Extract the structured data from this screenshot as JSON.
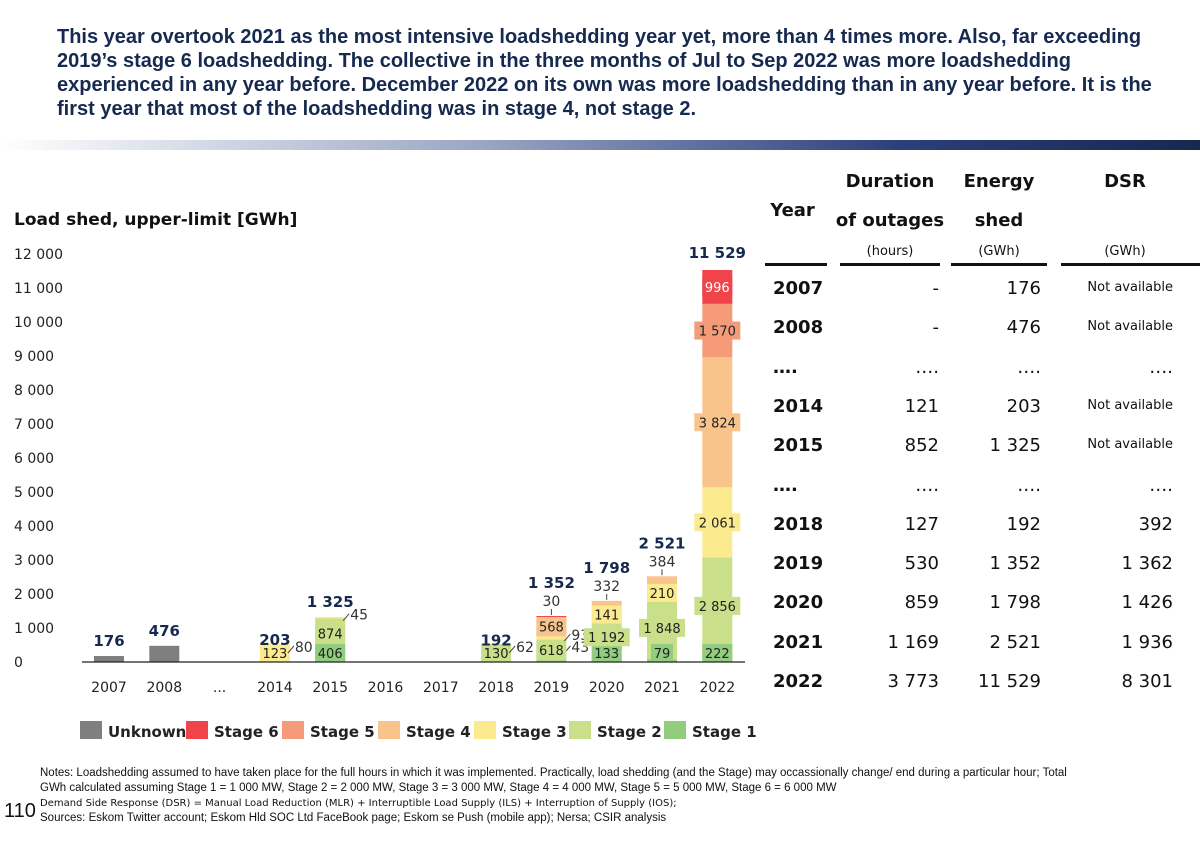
{
  "headline": "This year overtook 2021 as the most intensive loadshedding year yet, more than 4 times more.  Also, far exceeding 2019’s stage 6 loadshedding. The collective in the three months of Jul to Sep 2022 was more loadshedding experienced in any year before. December 2022 on its own was more loadshedding than in any year before. It is the first year that most of the loadshedding was in stage 4, not stage 2.",
  "chart_data": {
    "type": "bar",
    "stacked": true,
    "ylabel": "Load shed, upper-limit [GWh]",
    "ylim": [
      0,
      12000
    ],
    "yticks": [
      "0",
      "1 000",
      "2 000",
      "3 000",
      "4 000",
      "5 000",
      "6 000",
      "7 000",
      "8 000",
      "9 000",
      "10 000",
      "11 000",
      "12 000"
    ],
    "categories": [
      "2007",
      "2008",
      "...",
      "2014",
      "2015",
      "2016",
      "2017",
      "2018",
      "2019",
      "2020",
      "2021",
      "2022"
    ],
    "series": [
      {
        "name": "Unknown",
        "color": "#7f7f7f",
        "values": [
          176,
          476,
          0,
          0,
          0,
          0,
          0,
          0,
          0,
          0,
          0,
          0
        ]
      },
      {
        "name": "Stage 1",
        "color": "#92cc7e",
        "values": [
          0,
          0,
          0,
          0,
          406,
          0,
          0,
          0,
          43,
          133,
          79,
          222
        ]
      },
      {
        "name": "Stage 2",
        "color": "#c9df8a",
        "values": [
          0,
          0,
          0,
          80,
          874,
          0,
          0,
          130,
          618,
          1192,
          1848,
          2856
        ]
      },
      {
        "name": "Stage 3",
        "color": "#fbeb8e",
        "values": [
          0,
          0,
          0,
          123,
          45,
          0,
          0,
          62,
          93,
          141,
          210,
          2061
        ]
      },
      {
        "name": "Stage 4",
        "color": "#f9c48c",
        "values": [
          0,
          0,
          0,
          0,
          0,
          0,
          0,
          0,
          568,
          332,
          384,
          3824
        ]
      },
      {
        "name": "Stage 5",
        "color": "#f59b7a",
        "values": [
          0,
          0,
          0,
          0,
          0,
          0,
          0,
          0,
          0,
          0,
          0,
          1570
        ]
      },
      {
        "name": "Stage 6",
        "color": "#f0444a",
        "values": [
          0,
          0,
          0,
          0,
          0,
          0,
          0,
          0,
          30,
          0,
          0,
          996
        ]
      }
    ],
    "totals": [
      176,
      476,
      null,
      203,
      1325,
      null,
      null,
      192,
      1352,
      1798,
      2521,
      11529
    ],
    "total_labels": [
      "176",
      "476",
      "",
      "203",
      "1 325",
      "",
      "",
      "192",
      "1 352",
      "1 798",
      "2 521",
      "11 529"
    ],
    "segment_labels": [
      {
        "cat": 3,
        "series": "Stage 3",
        "text": "123",
        "mode": "inside"
      },
      {
        "cat": 3,
        "series": "Stage 2",
        "text": "80",
        "mode": "right"
      },
      {
        "cat": 4,
        "series": "Stage 1",
        "text": "406",
        "mode": "inside"
      },
      {
        "cat": 4,
        "series": "Stage 2",
        "text": "874",
        "mode": "inside"
      },
      {
        "cat": 4,
        "series": "Stage 3",
        "text": "45",
        "mode": "right"
      },
      {
        "cat": 7,
        "series": "Stage 2",
        "text": "130",
        "mode": "inside"
      },
      {
        "cat": 7,
        "series": "Stage 3",
        "text": "62",
        "mode": "right"
      },
      {
        "cat": 8,
        "series": "Stage 1",
        "text": "43",
        "mode": "right"
      },
      {
        "cat": 8,
        "series": "Stage 2",
        "text": "618",
        "mode": "inside"
      },
      {
        "cat": 8,
        "series": "Stage 3",
        "text": "93",
        "mode": "right"
      },
      {
        "cat": 8,
        "series": "Stage 4",
        "text": "568",
        "mode": "inside"
      },
      {
        "cat": 8,
        "series": "Stage 6",
        "text": "30",
        "mode": "above"
      },
      {
        "cat": 9,
        "series": "Stage 1",
        "text": "133",
        "mode": "inside"
      },
      {
        "cat": 9,
        "series": "Stage 2",
        "text": "1 192",
        "mode": "inside"
      },
      {
        "cat": 9,
        "series": "Stage 3",
        "text": "141",
        "mode": "inside"
      },
      {
        "cat": 9,
        "series": "Stage 4",
        "text": "332",
        "mode": "above"
      },
      {
        "cat": 10,
        "series": "Stage 1",
        "text": "79",
        "mode": "inside"
      },
      {
        "cat": 10,
        "series": "Stage 2",
        "text": "1 848",
        "mode": "inside"
      },
      {
        "cat": 10,
        "series": "Stage 3",
        "text": "210",
        "mode": "inside"
      },
      {
        "cat": 10,
        "series": "Stage 4",
        "text": "384",
        "mode": "above"
      },
      {
        "cat": 11,
        "series": "Stage 1",
        "text": "222",
        "mode": "inside"
      },
      {
        "cat": 11,
        "series": "Stage 2",
        "text": "2 856",
        "mode": "inside"
      },
      {
        "cat": 11,
        "series": "Stage 3",
        "text": "2 061",
        "mode": "inside"
      },
      {
        "cat": 11,
        "series": "Stage 4",
        "text": "3 824",
        "mode": "inside"
      },
      {
        "cat": 11,
        "series": "Stage 5",
        "text": "1 570",
        "mode": "inside"
      },
      {
        "cat": 11,
        "series": "Stage 6",
        "text": "996",
        "mode": "inside"
      }
    ],
    "legend": {
      "position": "bottom",
      "order": [
        "Unknown",
        "Stage 6",
        "Stage 5",
        "Stage 4",
        "Stage 3",
        "Stage 2",
        "Stage 1"
      ]
    }
  },
  "table": {
    "headers": {
      "year": "Year",
      "duration_1": "Duration",
      "duration_2": "of outages",
      "energy_1": "Energy",
      "energy_2": "shed",
      "dsr": "DSR"
    },
    "units": {
      "duration": "(hours)",
      "energy": "(GWh)",
      "dsr": "(GWh)"
    },
    "rows": [
      {
        "year": "2007",
        "duration": "-",
        "energy": "176",
        "dsr": "Not available"
      },
      {
        "year": "2008",
        "duration": "-",
        "energy": "476",
        "dsr": "Not available"
      },
      {
        "year": "….",
        "duration": "….",
        "energy": "….",
        "dsr": "…."
      },
      {
        "year": "2014",
        "duration": "121",
        "energy": "203",
        "dsr": "Not available"
      },
      {
        "year": "2015",
        "duration": "852",
        "energy": "1 325",
        "dsr": "Not available"
      },
      {
        "year": "….",
        "duration": "….",
        "energy": "….",
        "dsr": "…."
      },
      {
        "year": "2018",
        "duration": "127",
        "energy": "192",
        "dsr": "392"
      },
      {
        "year": "2019",
        "duration": "530",
        "energy": "1 352",
        "dsr": "1 362"
      },
      {
        "year": "2020",
        "duration": "859",
        "energy": "1 798",
        "dsr": "1 426"
      },
      {
        "year": "2021",
        "duration": "1 169",
        "energy": "2 521",
        "dsr": "1 936"
      },
      {
        "year": "2022",
        "duration": "3 773",
        "energy": "11 529",
        "dsr": "8 301"
      }
    ]
  },
  "notes": {
    "line1": "Notes: Loadshedding assumed to have taken place for the full hours in which it was implemented.  Practically, load shedding (and the Stage) may occassionally change/ end during a particular hour; Total GWh calculated assuming Stage 1 = 1 000 MW, Stage 2 = 2 000 MW, Stage 3 = 3 000 MW, Stage 4 = 4 000 MW, Stage 5 = 5 000 MW, Stage 6 = 6 000 MW",
    "line2": "Demand Side Response (DSR) = Manual Load Reduction (MLR) + Interruptible Load Supply (ILS) + Interruption of Supply (IOS);",
    "line3": "Sources: Eskom Twitter account; Eskom Hld SOC Ltd FaceBook page; Eskom se Push (mobile app); Nersa; CSIR analysis"
  },
  "page_number": "110"
}
